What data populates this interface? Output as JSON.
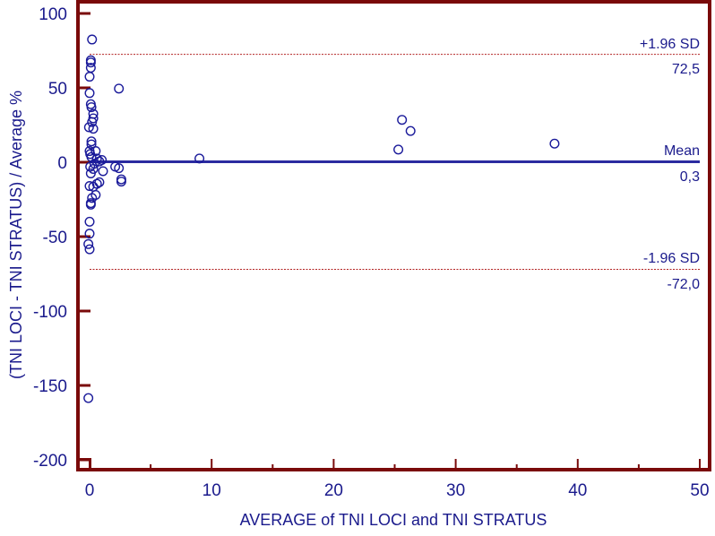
{
  "chart_data": {
    "type": "scatter",
    "subtype": "bland-altman",
    "title": "",
    "xlabel": "AVERAGE of TNI LOCI and TNI STRATUS",
    "ylabel": "(TNI LOCI - TNI STRATUS) / Average %",
    "xlim": [
      -1,
      50.8
    ],
    "ylim": [
      -208,
      110
    ],
    "x_ticks": [
      0,
      10,
      20,
      30,
      40,
      50
    ],
    "x_minor_ticks": [
      5,
      15,
      25,
      35,
      45
    ],
    "y_ticks": [
      100,
      50,
      0,
      -50,
      -100,
      -150,
      -200
    ],
    "grid": false,
    "legend": null,
    "reference_lines": [
      {
        "name": "upper_loa",
        "label_top": "+1.96 SD",
        "label_bottom": "72,5",
        "value": 72.5,
        "style": "dashed",
        "color": "#b22222"
      },
      {
        "name": "mean",
        "label_top": "Mean",
        "label_bottom": "0,3",
        "value": 0.3,
        "style": "solid",
        "color": "#2b2ba0"
      },
      {
        "name": "lower_loa",
        "label_top": "-1.96 SD",
        "label_bottom": "-72,0",
        "value": -72.0,
        "style": "dashed",
        "color": "#b22222"
      }
    ],
    "series": [
      {
        "name": "differences",
        "marker": "open-circle",
        "color": "#1a1a9a",
        "points": [
          [
            0.2,
            82.5
          ],
          [
            0.1,
            68.5
          ],
          [
            0.1,
            67
          ],
          [
            0.1,
            63.5
          ],
          [
            0.0,
            57.5
          ],
          [
            0.0,
            46.5
          ],
          [
            0.1,
            39
          ],
          [
            0.15,
            37
          ],
          [
            0.3,
            32.5
          ],
          [
            0.3,
            29.5
          ],
          [
            0.2,
            27
          ],
          [
            -0.05,
            23.5
          ],
          [
            0.3,
            22.5
          ],
          [
            0.15,
            14
          ],
          [
            0.15,
            12
          ],
          [
            0.0,
            7.5
          ],
          [
            0.05,
            5.5
          ],
          [
            0.15,
            3.5
          ],
          [
            0.5,
            7.5
          ],
          [
            0.6,
            2.5
          ],
          [
            1.0,
            1.5
          ],
          [
            0.8,
            0.5
          ],
          [
            0.4,
            -1
          ],
          [
            0.05,
            -3
          ],
          [
            0.3,
            -4.5
          ],
          [
            1.1,
            -6
          ],
          [
            2.1,
            -3
          ],
          [
            2.4,
            -4
          ],
          [
            2.6,
            -11.5
          ],
          [
            2.6,
            -13
          ],
          [
            0.1,
            -7.5
          ],
          [
            0.3,
            -16.5
          ],
          [
            0.6,
            -14.5
          ],
          [
            0.8,
            -13.5
          ],
          [
            0.0,
            -16
          ],
          [
            0.5,
            -22
          ],
          [
            0.2,
            -24
          ],
          [
            0.1,
            -27.5
          ],
          [
            0.1,
            -28.5
          ],
          [
            0.0,
            -40
          ],
          [
            0.0,
            -48
          ],
          [
            -0.1,
            -55
          ],
          [
            0.0,
            -58.5
          ],
          [
            -0.1,
            -158.5
          ],
          [
            2.4,
            49.5
          ],
          [
            9.0,
            2.5
          ],
          [
            25.3,
            8.5
          ],
          [
            25.6,
            28.5
          ],
          [
            26.3,
            21
          ],
          [
            38.1,
            12.5
          ]
        ]
      }
    ]
  },
  "axes": {
    "x_tick_labels": [
      "0",
      "10",
      "20",
      "30",
      "40",
      "50"
    ],
    "y_tick_labels": [
      "100",
      "50",
      "0",
      "-50",
      "-100",
      "-150",
      "-200"
    ],
    "x_title": "AVERAGE of TNI LOCI and TNI STRATUS",
    "y_title": "(TNI LOCI - TNI STRATUS) / Average %"
  },
  "reference_labels": {
    "upper_name": "+1.96 SD",
    "upper_value": "72,5",
    "mean_name": "Mean",
    "mean_value": "0,3",
    "lower_name": "-1.96 SD",
    "lower_value": "-72,0"
  },
  "colors": {
    "frame": "#7a0a0a",
    "text": "#1a1a8c",
    "marker": "#1a1a9a",
    "mean_line": "#2b2ba0",
    "loa_line": "#b22222"
  }
}
